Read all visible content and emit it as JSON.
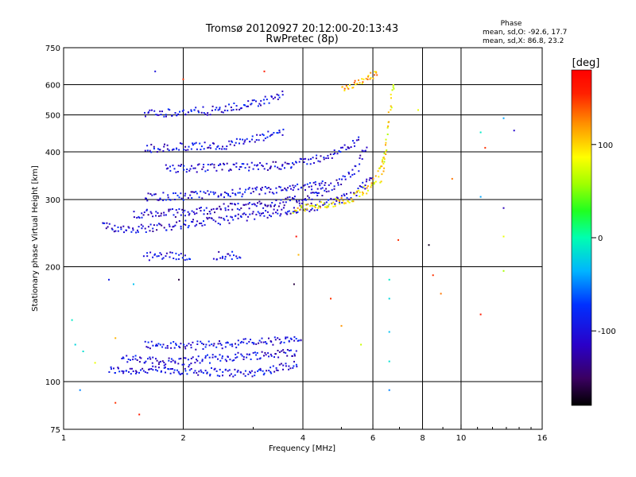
{
  "chart_data": {
    "type": "scatter",
    "title": "Tromsø 20120927 20:12:00-20:13:43",
    "subtitle": "RwPretec (8p)",
    "xlabel": "Frequency [MHz]",
    "ylabel": "Stationary phase Virtual Height [km]",
    "xscale": "log",
    "yscale": "log",
    "xlim": [
      1,
      16
    ],
    "ylim": [
      75,
      750
    ],
    "x_ticks": [
      "1",
      "2",
      "4",
      "6",
      "8",
      "10",
      "16"
    ],
    "x_tick_values": [
      1,
      2,
      4,
      6,
      8,
      10,
      16
    ],
    "x_grid": [
      2,
      4,
      6,
      8,
      10
    ],
    "y_ticks": [
      "75",
      "100",
      "200",
      "300",
      "400",
      "500",
      "600",
      "750"
    ],
    "y_tick_values": [
      75,
      100,
      200,
      300,
      400,
      500,
      600,
      750
    ],
    "y_grid": [
      100,
      200,
      300,
      400,
      500,
      600
    ],
    "grid": true,
    "phase_stats": {
      "title": "Phase",
      "lines": [
        "mean, sd,O: -92.6, 17.7",
        "mean, sd,X: 86.8, 23.2"
      ]
    },
    "colorbar": {
      "label": "[deg]",
      "range": [
        -180,
        180
      ],
      "ticks": [
        "100",
        "0",
        "-100"
      ],
      "tick_values": [
        100,
        0,
        -100
      ]
    },
    "traces": [
      {
        "name": "",
        "freq": [
          1.3,
          1.5,
          1.8,
          2.0,
          2.4,
          2.9,
          3.4,
          3.9
        ],
        "height": [
          107,
          107,
          107,
          107,
          106,
          105,
          108,
          112
        ],
        "phase": -100
      },
      {
        "name": "",
        "freq": [
          1.4,
          1.7,
          2.0,
          2.4,
          2.9,
          3.4,
          3.9
        ],
        "height": [
          115,
          113,
          113,
          115,
          117,
          118,
          120
        ],
        "phase": -102
      },
      {
        "name": "",
        "freq": [
          1.6,
          2.0,
          2.5,
          3.0,
          3.6,
          4.0
        ],
        "height": [
          125,
          124,
          125,
          127,
          128,
          129
        ],
        "phase": -98
      },
      {
        "name": "",
        "freq": [
          1.25,
          1.4,
          1.6,
          2.0,
          2.5,
          3.0,
          3.5,
          3.9,
          4.3,
          5.0,
          5.6,
          6.0
        ],
        "height": [
          255,
          252,
          252,
          258,
          265,
          272,
          278,
          283,
          288,
          300,
          320,
          345
        ],
        "phase": -105
      },
      {
        "name": "",
        "freq": [
          1.5,
          1.8,
          2.1,
          2.5,
          3.0,
          3.5,
          4.0,
          4.5,
          5.0,
          5.5,
          5.8
        ],
        "height": [
          275,
          276,
          278,
          285,
          290,
          295,
          300,
          315,
          335,
          365,
          420
        ],
        "phase": -110
      },
      {
        "name": "",
        "freq": [
          1.6,
          2.0,
          2.5,
          3.0,
          3.5,
          4.0,
          4.6
        ],
        "height": [
          305,
          306,
          310,
          315,
          318,
          322,
          330
        ],
        "phase": -100
      },
      {
        "name": "",
        "freq": [
          1.8,
          2.3,
          2.8,
          3.4,
          4.0,
          4.8,
          5.6
        ],
        "height": [
          362,
          363,
          365,
          368,
          375,
          395,
          430
        ],
        "phase": -105
      },
      {
        "name": "",
        "freq": [
          1.6,
          2.0,
          2.5,
          3.0,
          3.6
        ],
        "height": [
          408,
          412,
          415,
          430,
          455
        ],
        "phase": -100
      },
      {
        "name": "",
        "freq": [
          1.6,
          2.0,
          2.5,
          3.0,
          3.6
        ],
        "height": [
          505,
          508,
          515,
          535,
          565
        ],
        "phase": -100
      },
      {
        "name": "",
        "freq": [
          1.6,
          2.1
        ],
        "height": [
          213,
          213
        ],
        "phase": -100
      },
      {
        "name": "",
        "freq": [
          2.4,
          2.8
        ],
        "height": [
          214,
          214
        ],
        "phase": -100
      },
      {
        "name": "",
        "freq": [
          3.8,
          4.3,
          4.9,
          5.4,
          5.8,
          6.1,
          6.3,
          6.5
        ],
        "height": [
          282,
          288,
          295,
          305,
          320,
          340,
          370,
          400
        ],
        "phase": 95
      },
      {
        "name": "",
        "freq": [
          6.3,
          6.4,
          6.5,
          6.6,
          6.7,
          6.75
        ],
        "height": [
          330,
          380,
          440,
          500,
          560,
          610
        ],
        "phase": 90
      },
      {
        "name": "",
        "freq": [
          5.0,
          5.5,
          5.9,
          6.2
        ],
        "height": [
          590,
          610,
          630,
          650
        ],
        "phase": 110
      }
    ],
    "scattered_points": [
      {
        "freq": 1.05,
        "height": 145,
        "phase": -10
      },
      {
        "freq": 1.07,
        "height": 125,
        "phase": -20
      },
      {
        "freq": 1.12,
        "height": 120,
        "phase": -15
      },
      {
        "freq": 1.2,
        "height": 112,
        "phase": 80
      },
      {
        "freq": 1.1,
        "height": 95,
        "phase": -50
      },
      {
        "freq": 1.35,
        "height": 88,
        "phase": 150
      },
      {
        "freq": 1.35,
        "height": 130,
        "phase": 110
      },
      {
        "freq": 1.55,
        "height": 82,
        "phase": 160
      },
      {
        "freq": 1.5,
        "height": 180,
        "phase": -30
      },
      {
        "freq": 1.3,
        "height": 185,
        "phase": -90
      },
      {
        "freq": 1.95,
        "height": 185,
        "phase": -160
      },
      {
        "freq": 1.7,
        "height": 650,
        "phase": -100
      },
      {
        "freq": 2.0,
        "height": 620,
        "phase": 150
      },
      {
        "freq": 3.2,
        "height": 650,
        "phase": 160
      },
      {
        "freq": 3.8,
        "height": 180,
        "phase": -160
      },
      {
        "freq": 3.9,
        "height": 215,
        "phase": 110
      },
      {
        "freq": 3.85,
        "height": 240,
        "phase": 170
      },
      {
        "freq": 4.7,
        "height": 165,
        "phase": 150
      },
      {
        "freq": 5.0,
        "height": 140,
        "phase": 120
      },
      {
        "freq": 5.6,
        "height": 125,
        "phase": 70
      },
      {
        "freq": 6.6,
        "height": 185,
        "phase": -10
      },
      {
        "freq": 6.6,
        "height": 165,
        "phase": -20
      },
      {
        "freq": 6.6,
        "height": 135,
        "phase": -30
      },
      {
        "freq": 6.6,
        "height": 113,
        "phase": -15
      },
      {
        "freq": 6.6,
        "height": 95,
        "phase": -50
      },
      {
        "freq": 6.95,
        "height": 235,
        "phase": 150
      },
      {
        "freq": 7.8,
        "height": 515,
        "phase": 80
      },
      {
        "freq": 8.3,
        "height": 228,
        "phase": -170
      },
      {
        "freq": 8.5,
        "height": 190,
        "phase": 150
      },
      {
        "freq": 8.9,
        "height": 170,
        "phase": 130
      },
      {
        "freq": 9.5,
        "height": 340,
        "phase": 130
      },
      {
        "freq": 11.2,
        "height": 450,
        "phase": -10
      },
      {
        "freq": 11.2,
        "height": 305,
        "phase": -40
      },
      {
        "freq": 11.2,
        "height": 150,
        "phase": 160
      },
      {
        "freq": 11.5,
        "height": 410,
        "phase": 150
      },
      {
        "freq": 12.8,
        "height": 490,
        "phase": -40
      },
      {
        "freq": 12.8,
        "height": 285,
        "phase": -120
      },
      {
        "freq": 12.8,
        "height": 240,
        "phase": 80
      },
      {
        "freq": 12.8,
        "height": 195,
        "phase": 60
      },
      {
        "freq": 13.6,
        "height": 455,
        "phase": -110
      }
    ]
  }
}
